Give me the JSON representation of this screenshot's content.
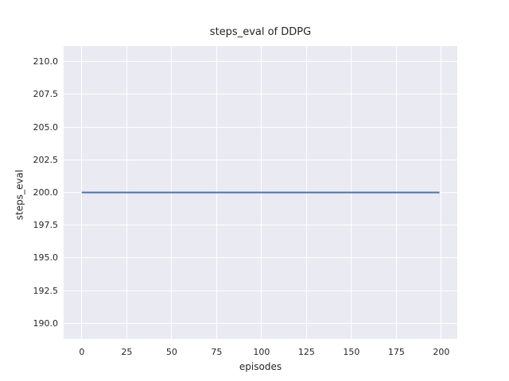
{
  "chart_data": {
    "type": "line",
    "title": "steps_eval of DDPG",
    "xlabel": "episodes",
    "ylabel": "steps_eval",
    "xlim": [
      -10.1,
      208.9
    ],
    "ylim": [
      188.8,
      211.2
    ],
    "xticks": [
      0,
      25,
      50,
      75,
      100,
      125,
      150,
      175,
      200
    ],
    "xtick_labels": [
      "0",
      "25",
      "50",
      "75",
      "100",
      "125",
      "150",
      "175",
      "200"
    ],
    "yticks": [
      190.0,
      192.5,
      195.0,
      197.5,
      200.0,
      202.5,
      205.0,
      207.5,
      210.0
    ],
    "ytick_labels": [
      "190.0",
      "192.5",
      "195.0",
      "197.5",
      "200.0",
      "202.5",
      "205.0",
      "207.5",
      "210.0"
    ],
    "grid": true,
    "legend": null,
    "series": [
      {
        "name": "steps_eval",
        "x": [
          0,
          199
        ],
        "y": [
          200,
          200
        ],
        "note": "constant value 200 for all 200 episodes (0-199)"
      }
    ],
    "colors": {
      "figure_background": "#ffffff",
      "plot_background": "#eaeaf2",
      "grid": "#ffffff",
      "text": "#262626",
      "line": "#4c72b0"
    }
  }
}
